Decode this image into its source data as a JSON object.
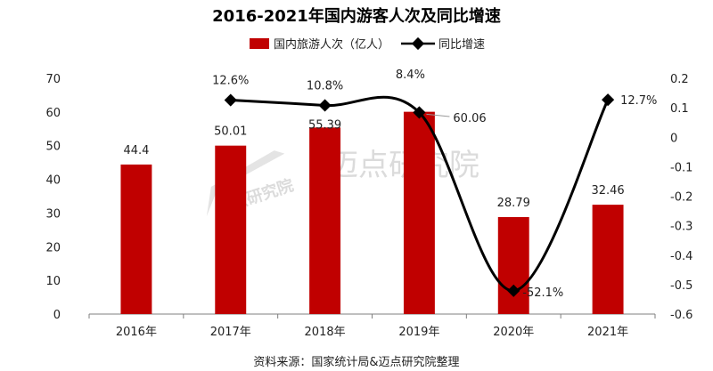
{
  "chart_data": {
    "type": "bar",
    "title": "2016-2021年国内游客人次及同比增速",
    "categories": [
      "2016年",
      "2017年",
      "2018年",
      "2019年",
      "2020年",
      "2021年"
    ],
    "series": [
      {
        "name": "国内旅游人次（亿人）",
        "type": "bar",
        "axis": "left",
        "values": [
          44.4,
          50.01,
          55.39,
          60.06,
          28.79,
          32.46
        ],
        "labels": [
          "44.4",
          "50.01",
          "55.39",
          "60.06",
          "28.79",
          "32.46"
        ]
      },
      {
        "name": "同比增速",
        "type": "line",
        "axis": "right",
        "values": [
          null,
          0.126,
          0.108,
          0.084,
          -0.521,
          0.127
        ],
        "labels": [
          "",
          "12.6%",
          "10.8%",
          "8.4%",
          "-52.1%",
          "12.7%"
        ]
      }
    ],
    "y_left": {
      "min": 0,
      "max": 70,
      "ticks": [
        "0",
        "10",
        "20",
        "30",
        "40",
        "50",
        "60",
        "70"
      ]
    },
    "y_right": {
      "min": -0.6,
      "max": 0.2,
      "ticks": [
        "0.2",
        "0.1",
        "0",
        "-0.1",
        "-0.2",
        "-0.3",
        "-0.4",
        "-0.5",
        "-0.6"
      ],
      "tick_values": [
        0.2,
        0.1,
        0,
        -0.1,
        -0.2,
        -0.3,
        -0.4,
        -0.5,
        -0.6
      ]
    },
    "legend_position": "top-center",
    "grid": false,
    "bar_color": "#c00000",
    "line_color": "#000000"
  },
  "source": "资料来源：国家统计局&迈点研究院整理",
  "watermark": "迈点研究院"
}
